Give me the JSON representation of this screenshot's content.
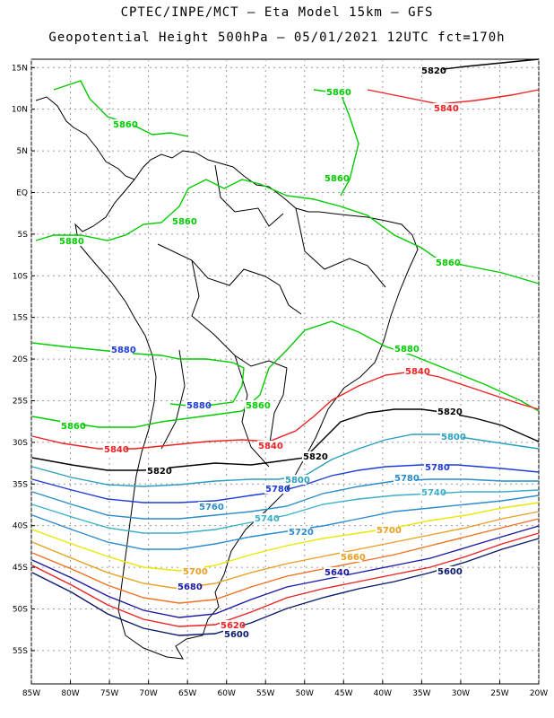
{
  "header": {
    "line1": "CPTEC/INPE/MCT –  Eta Model 15km – GFS",
    "line2": "Geopotential Height 500hPa – 05/01/2021 12UTC fct=170h"
  },
  "map": {
    "lat_labels": [
      "15N",
      "10N",
      "5N",
      "EQ",
      "5S",
      "10S",
      "15S",
      "20S",
      "25S",
      "30S",
      "35S",
      "40S",
      "45S",
      "50S",
      "55S"
    ],
    "lon_labels": [
      "85W",
      "80W",
      "75W",
      "70W",
      "65W",
      "60W",
      "55W",
      "50W",
      "45W",
      "40W",
      "35W",
      "30W",
      "25W",
      "20W"
    ],
    "lon_range": [
      -85,
      -20
    ],
    "lat_range": [
      -59,
      16
    ],
    "grid": "dotted"
  },
  "contours": [
    {
      "level": "5880",
      "color": "#00cc00"
    },
    {
      "level": "5860",
      "color": "#00cc00"
    },
    {
      "level": "5840",
      "color": "#ee2222"
    },
    {
      "level": "5820",
      "color": "#000000"
    },
    {
      "level": "5800",
      "color": "#2a9fbf"
    },
    {
      "level": "5780",
      "color": "#1e3cd8"
    },
    {
      "level": "5760",
      "color": "#2a8cc8"
    },
    {
      "level": "5740",
      "color": "#3ab0c8"
    },
    {
      "level": "5720",
      "color": "#2c8cd0"
    },
    {
      "level": "5700",
      "color": "#e8e800"
    },
    {
      "level": "5680",
      "color": "#e8a020"
    },
    {
      "level": "5660",
      "color": "#f07020"
    },
    {
      "level": "5640",
      "color": "#1a1aa0"
    },
    {
      "level": "5620",
      "color": "#ee2222"
    },
    {
      "level": "5600",
      "color": "#0a1a6a"
    }
  ],
  "contour_labels": [
    {
      "text": "5820",
      "color": "#000000"
    },
    {
      "text": "5840",
      "color": "#ee2222"
    },
    {
      "text": "5860",
      "color": "#00cc00"
    },
    {
      "text": "5860",
      "color": "#00cc00"
    },
    {
      "text": "5860",
      "color": "#00cc00"
    },
    {
      "text": "5860",
      "color": "#00cc00"
    },
    {
      "text": "5880",
      "color": "#00cc00"
    },
    {
      "text": "5860",
      "color": "#00cc00"
    },
    {
      "text": "5880",
      "color": "#1e3cd8"
    },
    {
      "text": "5880",
      "color": "#00cc00"
    },
    {
      "text": "5840",
      "color": "#ee2222"
    },
    {
      "text": "5880",
      "color": "#1e3cd8"
    },
    {
      "text": "5860",
      "color": "#00cc00"
    },
    {
      "text": "5820",
      "color": "#000000"
    },
    {
      "text": "5860",
      "color": "#00cc00"
    },
    {
      "text": "5800",
      "color": "#2a9fbf"
    },
    {
      "text": "5840",
      "color": "#ee2222"
    },
    {
      "text": "5840",
      "color": "#ee2222"
    },
    {
      "text": "5820",
      "color": "#000000"
    },
    {
      "text": "5820",
      "color": "#000000"
    },
    {
      "text": "5780",
      "color": "#1e3cd8"
    },
    {
      "text": "5800",
      "color": "#2a9fbf"
    },
    {
      "text": "5780",
      "color": "#1e3cd8"
    },
    {
      "text": "5780",
      "color": "#2a8cc8"
    },
    {
      "text": "5740",
      "color": "#3ab0c8"
    },
    {
      "text": "5760",
      "color": "#2a8cc8"
    },
    {
      "text": "5740",
      "color": "#3ab0c8"
    },
    {
      "text": "5720",
      "color": "#2c8cd0"
    },
    {
      "text": "5700",
      "color": "#e8a020"
    },
    {
      "text": "5700",
      "color": "#e8a020"
    },
    {
      "text": "5660",
      "color": "#e8a020"
    },
    {
      "text": "5680",
      "color": "#1a1aa0"
    },
    {
      "text": "5640",
      "color": "#1a1aa0"
    },
    {
      "text": "5600",
      "color": "#0a1a6a"
    },
    {
      "text": "5620",
      "color": "#ee2222"
    },
    {
      "text": "5600",
      "color": "#0a1a6a"
    }
  ]
}
